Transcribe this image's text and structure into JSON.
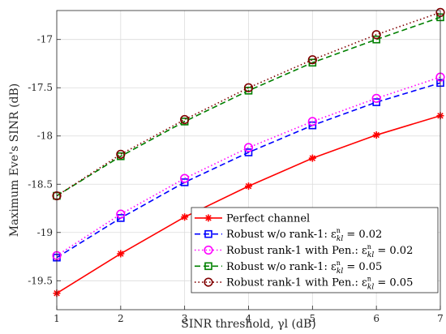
{
  "chart_data": {
    "type": "line",
    "xlabel": "SINR threshold, γl (dB)",
    "ylabel": "Maximum Eve's SINR (dB)",
    "xlim": [
      1,
      7
    ],
    "ylim": [
      -19.8,
      -16.7
    ],
    "x_ticks": [
      1,
      2,
      3,
      4,
      5,
      6,
      7
    ],
    "x_tick_labels": [
      "1",
      "2",
      "3",
      "4",
      "5",
      "6",
      "7"
    ],
    "y_ticks": [
      -19.5,
      -19,
      -18.5,
      -18,
      -17.5,
      -17
    ],
    "y_tick_labels": [
      "-19.5",
      "-19",
      "-18.5",
      "-18",
      "-17.5",
      "-17"
    ],
    "grid": true,
    "legend_position": "bottom-right",
    "x": [
      1,
      2,
      3,
      4,
      5,
      6,
      7
    ],
    "series": [
      {
        "name": "Perfect channel",
        "color": "#ff0000",
        "line_style": "solid",
        "marker": "asterisk",
        "values": [
          -19.63,
          -19.22,
          -18.84,
          -18.52,
          -18.23,
          -17.99,
          -17.79
        ]
      },
      {
        "name": "Robust w/o rank-1: ε",
        "name_suffix": "kl",
        "name_value": " = 0.02",
        "color": "#0000ff",
        "line_style": "dashed",
        "marker": "square",
        "values": [
          -19.26,
          -18.85,
          -18.48,
          -18.17,
          -17.89,
          -17.65,
          -17.45
        ]
      },
      {
        "name": "Robust rank-1 with Pen.: ε",
        "name_suffix": "kl",
        "name_value": " = 0.02",
        "color": "#ff00ff",
        "line_style": "dotted",
        "marker": "circle",
        "values": [
          -19.24,
          -18.81,
          -18.44,
          -18.12,
          -17.85,
          -17.61,
          -17.39
        ]
      },
      {
        "name": "Robust w/o rank-1: ε",
        "name_suffix": "kl",
        "name_value": " = 0.05",
        "color": "#008000",
        "line_style": "dashed",
        "marker": "square",
        "values": [
          -18.62,
          -18.21,
          -17.85,
          -17.53,
          -17.24,
          -17.0,
          -16.77
        ]
      },
      {
        "name": "Robust rank-1 with Pen.: ε",
        "name_suffix": "kl",
        "name_value": " = 0.05",
        "color": "#800000",
        "line_style": "dotted",
        "marker": "circle",
        "values": [
          -18.62,
          -18.19,
          -17.83,
          -17.5,
          -17.21,
          -16.95,
          -16.72
        ]
      }
    ]
  }
}
